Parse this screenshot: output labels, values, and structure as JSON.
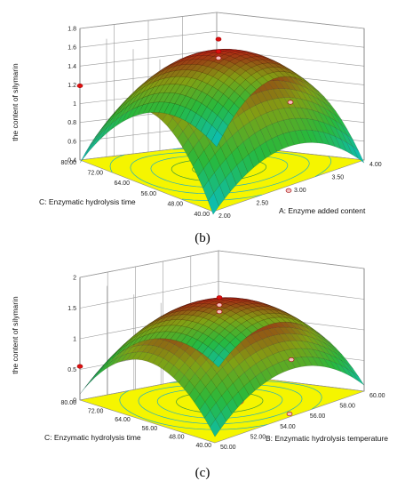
{
  "chart_data": [
    {
      "type": "surface",
      "panel": "(b)",
      "zlabel": "the content of silymarin",
      "xlabel": "A: Enzyme added content",
      "ylabel": "C: Enzymatic hydrolysis time",
      "x_ticks": [
        "2.00",
        "2.50",
        "3.00",
        "3.50",
        "4.00"
      ],
      "y_ticks": [
        "40.00",
        "48.00",
        "56.00",
        "64.00",
        "72.00",
        "80.00"
      ],
      "z_ticks": [
        "0.4",
        "0.6",
        "0.8",
        "1",
        "1.2",
        "1.4",
        "1.6",
        "1.8"
      ],
      "xlim": [
        2,
        4
      ],
      "ylim": [
        40,
        80
      ],
      "zlim": [
        0.4,
        1.8
      ],
      "model": {
        "x0": 3,
        "y0": 60,
        "zmax": 1.65,
        "kx": 0.28,
        "ky": 0.52
      },
      "points": [
        {
          "x": 3,
          "y": 60,
          "z": 1.78
        },
        {
          "x": 3,
          "y": 60,
          "z": 1.65
        },
        {
          "x": 3,
          "y": 60,
          "z": 1.58
        },
        {
          "x": 2,
          "y": 80,
          "z": 1.19
        },
        {
          "x": 4,
          "y": 60,
          "z": 0.93
        },
        {
          "x": 3,
          "y": 40,
          "z": 0.35
        }
      ]
    },
    {
      "type": "surface",
      "panel": "(c)",
      "zlabel": "the content of silymarin",
      "xlabel": "B: Enzymatic hydrolysis temperature",
      "ylabel": "C: Enzymatic hydrolysis time",
      "x_ticks": [
        "50.00",
        "52.00",
        "54.00",
        "56.00",
        "58.00",
        "60.00"
      ],
      "y_ticks": [
        "40.00",
        "48.00",
        "56.00",
        "64.00",
        "72.00",
        "80.00"
      ],
      "z_ticks": [
        "0",
        "0.5",
        "1",
        "1.5",
        "2"
      ],
      "xlim": [
        50,
        60
      ],
      "ylim": [
        40,
        80
      ],
      "zlim": [
        0,
        2
      ],
      "model": {
        "x0": 55,
        "y0": 60,
        "zmax": 1.65,
        "kx": 0.42,
        "ky": 0.55
      },
      "points": [
        {
          "x": 55,
          "y": 60,
          "z": 1.7
        },
        {
          "x": 55,
          "y": 60,
          "z": 1.58
        },
        {
          "x": 55,
          "y": 60,
          "z": 1.47
        },
        {
          "x": 50,
          "y": 80,
          "z": 0.55
        },
        {
          "x": 60,
          "y": 60,
          "z": 0.37
        },
        {
          "x": 55,
          "y": 40,
          "z": 0.05
        }
      ]
    }
  ]
}
